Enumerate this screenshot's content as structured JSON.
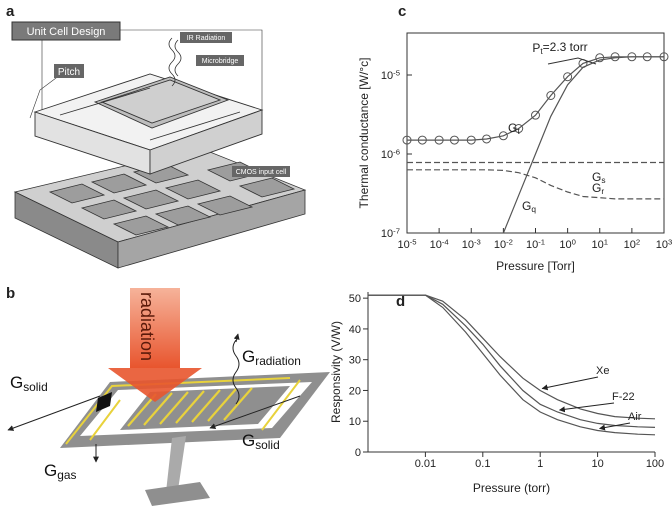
{
  "panels": {
    "a": {
      "label": "a",
      "title": "Unit Cell Design",
      "callouts": [
        "IR Radiation",
        "Microbridge",
        "Pitch",
        "CMOS input cell"
      ]
    },
    "b": {
      "label": "b",
      "arrow_text": "radiation",
      "labels": [
        "Gradiation",
        "Gsolid",
        "Gsolid",
        "Ggas"
      ]
    }
  },
  "chart_data": [
    {
      "panel": "c",
      "type": "line",
      "x_label": "Pressure [Torr]",
      "y_label": "Thermal conductance [W/°c]",
      "log_x": true,
      "log_y": true,
      "frame": true,
      "x": [
        1e-05,
        3e-05,
        0.0001,
        0.0003,
        0.001,
        0.003,
        0.01,
        0.03,
        0.1,
        0.3,
        1,
        3,
        10,
        30,
        100,
        300,
        1000
      ],
      "series": [
        {
          "name": "Gt",
          "color": "#555555",
          "marker": "circle",
          "dashed": false,
          "values": [
            1.5e-06,
            1.5e-06,
            1.5e-06,
            1.5e-06,
            1.5e-06,
            1.55e-06,
            1.7e-06,
            2.1e-06,
            3.1e-06,
            5.5e-06,
            9.5e-06,
            1.4e-05,
            1.65e-05,
            1.7e-05,
            1.7e-05,
            1.7e-05,
            1.7e-05
          ]
        },
        {
          "name": "Gs",
          "color": "#555555",
          "dashed": true,
          "values": [
            7.8e-07,
            7.8e-07,
            7.8e-07,
            7.8e-07,
            7.8e-07,
            7.8e-07,
            7.8e-07,
            7.8e-07,
            7.8e-07,
            7.8e-07,
            7.8e-07,
            7.8e-07,
            7.8e-07,
            7.8e-07,
            7.8e-07,
            7.8e-07,
            7.8e-07
          ]
        },
        {
          "name": "Gr",
          "color": "#555555",
          "dashed": true,
          "values": [
            6.3e-07,
            6.3e-07,
            6.3e-07,
            6.3e-07,
            6.3e-07,
            6.3e-07,
            6.2e-07,
            5.8e-07,
            5e-07,
            4e-07,
            3.3e-07,
            2.9e-07,
            2.8e-07,
            2.7e-07,
            2.7e-07,
            2.7e-07,
            2.7e-07
          ]
        },
        {
          "name": "Gq",
          "color": "#555555",
          "dashed": false,
          "values": [
            null,
            null,
            null,
            null,
            null,
            null,
            1e-07,
            3e-07,
            1e-06,
            3e-06,
            7.5e-06,
            1.25e-05,
            1.55e-05,
            1.65e-05,
            1.7e-05,
            1.7e-05,
            1.7e-05
          ]
        }
      ],
      "annotations": [
        "Pt=2.3 torr"
      ],
      "xlim": [
        1e-05,
        1000
      ],
      "ylim": [
        1e-07,
        3.4e-05
      ],
      "xticks": [
        {
          "value": 1e-05,
          "label": "10-5"
        },
        {
          "value": 0.0001,
          "label": "10-4"
        },
        {
          "value": 0.001,
          "label": "10-3"
        },
        {
          "value": 0.01,
          "label": "10-2"
        },
        {
          "value": 0.1,
          "label": "10-1"
        },
        {
          "value": 1,
          "label": "100"
        },
        {
          "value": 10,
          "label": "101"
        },
        {
          "value": 100,
          "label": "102"
        },
        {
          "value": 1000,
          "label": "103"
        }
      ],
      "yticks": [
        {
          "value": 1e-07,
          "label": "10-7"
        },
        {
          "value": 1e-06,
          "label": "10-6"
        },
        {
          "value": 1e-05,
          "label": "10-5"
        }
      ]
    },
    {
      "panel": "d",
      "type": "line",
      "x_label": "Pressure (torr)",
      "y_label": "Responsivity (V/W)",
      "log_x": true,
      "log_y": false,
      "frame": false,
      "x": [
        0.001,
        0.01,
        0.02,
        0.05,
        0.1,
        0.2,
        0.5,
        1,
        2,
        5,
        10,
        20,
        50,
        100
      ],
      "series": [
        {
          "name": "Xe",
          "color": "#555555",
          "values": [
            51,
            51,
            49,
            43,
            37,
            31,
            24,
            20,
            17,
            14,
            12.5,
            11.5,
            11,
            10.8
          ]
        },
        {
          "name": "F-22",
          "color": "#555555",
          "values": [
            51,
            51,
            48,
            41,
            35,
            28,
            20,
            15.5,
            13,
            10.5,
            9.3,
            8.6,
            8.2,
            8
          ]
        },
        {
          "name": "Air",
          "color": "#555555",
          "values": [
            51,
            51,
            47,
            39,
            32,
            25,
            17,
            13,
            10.5,
            8.2,
            7,
            6.3,
            5.8,
            5.6
          ]
        }
      ],
      "xlim": [
        0.001,
        100
      ],
      "ylim": [
        0,
        52
      ],
      "xticks": [
        0.01,
        0.1,
        1,
        10,
        100
      ],
      "yticks": [
        0,
        10,
        20,
        30,
        40,
        50
      ]
    }
  ]
}
